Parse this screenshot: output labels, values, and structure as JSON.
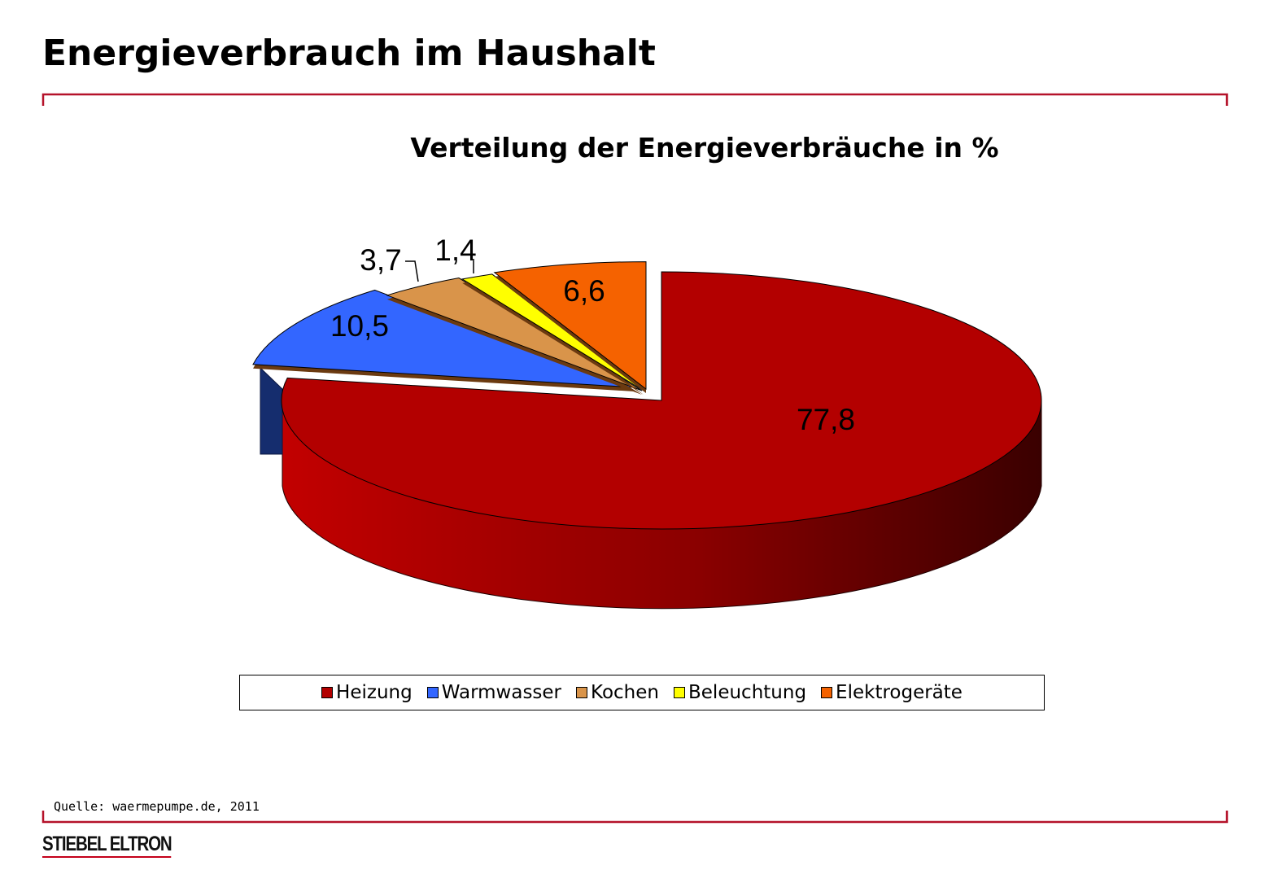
{
  "header": {
    "title": "Energieverbrauch im Haushalt",
    "accent_color": "#b5122a"
  },
  "chart_data": {
    "type": "pie",
    "title": "Verteilung der Energieverbräuche in %",
    "three_d": true,
    "exploded": true,
    "categories": [
      "Heizung",
      "Warmwasser",
      "Kochen",
      "Beleuchtung",
      "Elektrogeräte"
    ],
    "values": [
      77.8,
      10.5,
      3.7,
      1.4,
      6.6
    ],
    "value_labels": [
      "77,8",
      "10,5",
      "3,7",
      "1,4",
      "6,6"
    ],
    "colors": [
      "#b30000",
      "#3366ff",
      "#d9944a",
      "#ffff00",
      "#f56200"
    ],
    "legend_position": "bottom"
  },
  "footer": {
    "source": "Quelle: waermepumpe.de, 2011",
    "logo_text": "STIEBEL ELTRON"
  }
}
